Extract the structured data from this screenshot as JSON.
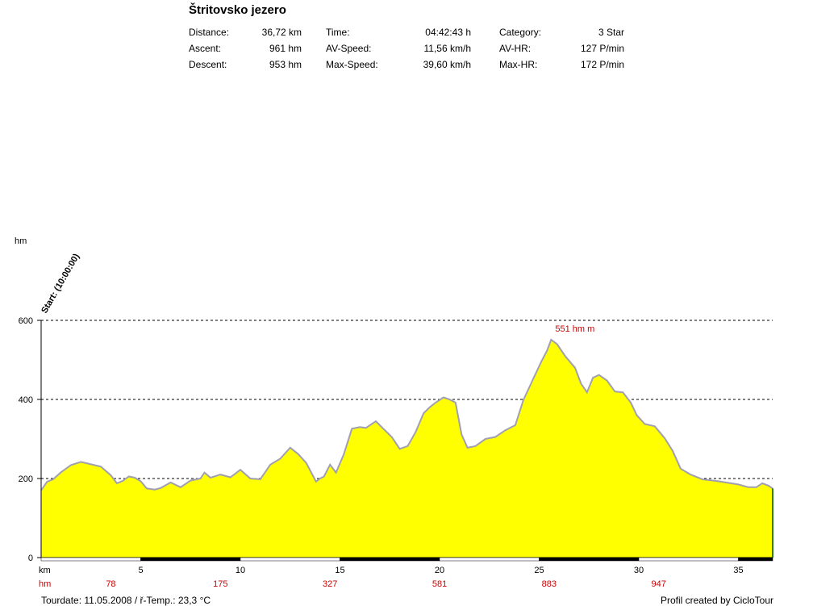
{
  "title": "Štritovsko jezero",
  "stats": [
    [
      {
        "label": "Distance:",
        "value": "36,72 km"
      },
      {
        "label": "Ascent:",
        "value": "961 hm"
      },
      {
        "label": "Descent:",
        "value": "953 hm"
      }
    ],
    [
      {
        "label": "Time:",
        "value": "04:42:43 h"
      },
      {
        "label": "AV-Speed:",
        "value": "11,56 km/h"
      },
      {
        "label": "Max-Speed:",
        "value": "39,60 km/h"
      }
    ],
    [
      {
        "label": "Category:",
        "value": "3 Star"
      },
      {
        "label": "AV-HR:",
        "value": "127 P/min"
      },
      {
        "label": "Max-HR:",
        "value": "172 P/min"
      }
    ]
  ],
  "footer": {
    "left": "Tourdate: 11.05.2008  /  ř-Temp.: 23,3 °C",
    "right": "Profil created by CicloTour"
  },
  "chart_data": {
    "type": "area",
    "ylabel": "hm",
    "xlabel": "km",
    "xlim": [
      0,
      36.72
    ],
    "ylim": [
      0,
      600
    ],
    "yticks": [
      0,
      200,
      400,
      600
    ],
    "xticks": [
      5,
      10,
      15,
      20,
      25,
      30,
      35
    ],
    "grid": "horizontal dashed",
    "fill_color": "#ffff00",
    "line_color": "#a0a0b0",
    "start_label": "Start: (10:00:00)",
    "peak_label": {
      "x": 25.6,
      "y": 551,
      "text": "551 hm m"
    },
    "cumulative_ascent_label": "hm",
    "cumulative_ascent": [
      {
        "x": 3.5,
        "value": "78"
      },
      {
        "x": 9.0,
        "value": "175"
      },
      {
        "x": 14.5,
        "value": "327"
      },
      {
        "x": 20.0,
        "value": "581"
      },
      {
        "x": 25.5,
        "value": "883"
      },
      {
        "x": 31.0,
        "value": "947"
      }
    ],
    "x": [
      0,
      0.3,
      0.6,
      1.0,
      1.5,
      2.0,
      2.5,
      3.0,
      3.5,
      3.8,
      4.1,
      4.4,
      4.7,
      5.0,
      5.3,
      5.7,
      6.0,
      6.5,
      7.0,
      7.5,
      8.0,
      8.2,
      8.5,
      9.0,
      9.5,
      10.0,
      10.5,
      11.0,
      11.5,
      12.0,
      12.5,
      12.9,
      13.3,
      13.8,
      14.0,
      14.2,
      14.5,
      14.8,
      15.2,
      15.6,
      16.0,
      16.3,
      16.8,
      17.2,
      17.6,
      18.0,
      18.4,
      18.8,
      19.2,
      19.5,
      19.8,
      20.2,
      20.5,
      20.8,
      21.1,
      21.4,
      21.8,
      22.3,
      22.8,
      23.3,
      23.8,
      24.2,
      24.7,
      25.1,
      25.4,
      25.6,
      25.9,
      26.3,
      26.8,
      27.1,
      27.4,
      27.7,
      28.0,
      28.4,
      28.8,
      29.2,
      29.6,
      29.9,
      30.3,
      30.8,
      31.3,
      31.7,
      32.1,
      32.6,
      33.2,
      34.0,
      35.0,
      35.5,
      35.9,
      36.2,
      36.5,
      36.72
    ],
    "y": [
      170,
      192,
      198,
      216,
      234,
      242,
      236,
      230,
      208,
      188,
      194,
      205,
      202,
      193,
      175,
      172,
      176,
      190,
      178,
      195,
      200,
      215,
      202,
      210,
      203,
      222,
      200,
      198,
      235,
      250,
      278,
      262,
      240,
      192,
      200,
      205,
      235,
      215,
      262,
      326,
      330,
      328,
      345,
      325,
      305,
      275,
      282,
      318,
      365,
      380,
      392,
      405,
      400,
      392,
      312,
      278,
      282,
      300,
      305,
      322,
      335,
      398,
      452,
      495,
      524,
      551,
      540,
      510,
      480,
      440,
      418,
      455,
      462,
      448,
      420,
      418,
      392,
      360,
      338,
      332,
      302,
      270,
      225,
      210,
      198,
      193,
      185,
      178,
      178,
      188,
      182,
      175
    ]
  }
}
